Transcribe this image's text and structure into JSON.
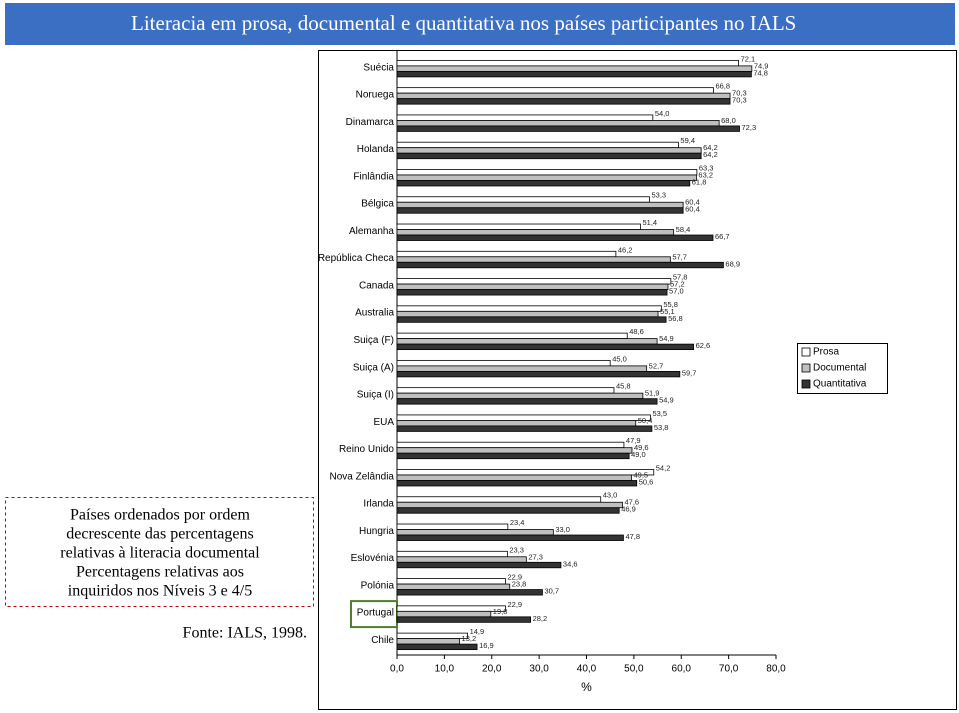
{
  "chart_data": {
    "type": "hbar",
    "title": "Literacia em prosa, documental e quantitativa nos países participantes no IALS",
    "categories": [
      "Suécia",
      "Noruega",
      "Dinamarca",
      "Holanda",
      "Finlândia",
      "Bélgica",
      "Alemanha",
      "República Checa",
      "Canada",
      "Australia",
      "Suiça (F)",
      "Suiça (A)",
      "Suiça (I)",
      "EUA",
      "Reino Unido",
      "Nova Zelândia",
      "Irlanda",
      "Hungria",
      "Eslovénia",
      "Polónia",
      "Portugal",
      "Chile"
    ],
    "series": [
      {
        "name": "Prosa",
        "color": "#ffffff",
        "values": [
          72.1,
          66.8,
          54.0,
          59.4,
          63.3,
          53.3,
          51.4,
          46.2,
          57.8,
          55.8,
          48.6,
          45.0,
          45.8,
          53.5,
          47.9,
          54.2,
          43.0,
          23.4,
          23.3,
          22.9,
          22.9,
          14.9
        ],
        "value_labels": [
          "72,1",
          "66,8",
          "54,0",
          "59,4",
          "63,3",
          "53,3",
          "51,4",
          "46,2",
          "57,8",
          "55,8",
          "48,6",
          "45,0",
          "45,8",
          "53,5",
          "47,9",
          "54,2",
          "43,0",
          "23,4",
          "23,3",
          "22,9",
          "22,9",
          "14,9"
        ]
      },
      {
        "name": "Documental",
        "color": "#bfbfbf",
        "values": [
          74.9,
          70.3,
          68.0,
          64.2,
          63.2,
          60.4,
          58.4,
          57.7,
          57.2,
          55.1,
          54.9,
          52.7,
          51.9,
          50.4,
          49.6,
          49.5,
          47.6,
          33.0,
          27.3,
          23.8,
          19.8,
          13.2
        ],
        "value_labels": [
          "74,9",
          "70,3",
          "68,0",
          "64,2",
          "63,2",
          "60,4",
          "58,4",
          "57,7",
          "57,2",
          "55,1",
          "54,9",
          "52,7",
          "51,9",
          "50,4",
          "49,6",
          "49,5",
          "47,6",
          "33,0",
          "27,3",
          "23,8",
          "19,8",
          "13,2"
        ]
      },
      {
        "name": "Quantitativa",
        "color": "#333333",
        "values": [
          74.8,
          70.3,
          72.3,
          64.2,
          61.8,
          60.4,
          66.7,
          68.9,
          57.0,
          56.8,
          62.6,
          59.7,
          54.9,
          53.8,
          49.0,
          50.6,
          46.9,
          47.8,
          34.6,
          30.7,
          28.2,
          16.9
        ],
        "value_labels": [
          "74,8",
          "70,3",
          "72,3",
          "64,2",
          "61,8",
          "60,4",
          "66,7",
          "68,9",
          "57,0",
          "56,8",
          "62,6",
          "59,7",
          "54,9",
          "53,8",
          "49,0",
          "50,6",
          "46,9",
          "47,8",
          "34,6",
          "30,7",
          "28,2",
          "16,9"
        ]
      }
    ],
    "xlim": [
      0,
      80
    ],
    "xticks": [
      {
        "value": 0,
        "label": "0,0"
      },
      {
        "value": 10,
        "label": "10,0"
      },
      {
        "value": 20,
        "label": "20,0"
      },
      {
        "value": 30,
        "label": "30,0"
      },
      {
        "value": 40,
        "label": "40,0"
      },
      {
        "value": 50,
        "label": "50,0"
      },
      {
        "value": 60,
        "label": "60,0"
      },
      {
        "value": 70,
        "label": "70,0"
      },
      {
        "value": 80,
        "label": "80,0"
      }
    ],
    "xlabel": "%",
    "legend": "right",
    "highlighted_category": 20,
    "notes": [
      "Países ordenados por ordem",
      "decrescente das percentagens",
      "relativas à literacia documental",
      "Percentagens relativas aos",
      "inquiridos nos Níveis 3 e 4/5"
    ],
    "source": "Fonte: IALS, 1998."
  }
}
